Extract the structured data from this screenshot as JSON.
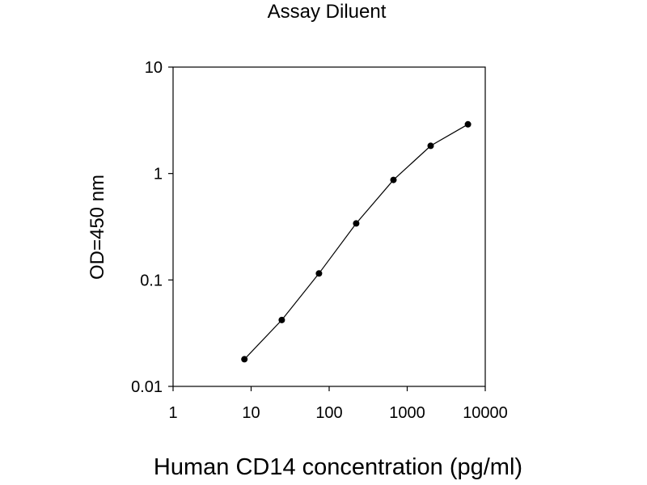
{
  "chart_data": {
    "type": "line",
    "title": "Assay Diluent",
    "xlabel": "Human CD14 concentration (pg/ml)",
    "ylabel": "OD=450 nm",
    "x_scale": "log",
    "y_scale": "log",
    "xlim": [
      1,
      10000
    ],
    "ylim": [
      0.01,
      10
    ],
    "x_ticks": [
      "1",
      "10",
      "100",
      "1000",
      "10000"
    ],
    "y_ticks": [
      "0.01",
      "0.1",
      "1",
      "10"
    ],
    "grid": false,
    "legend": "none",
    "series": [
      {
        "x": [
          8.2,
          24.7,
          74,
          222,
          667,
          2000,
          6000
        ],
        "y": [
          0.018,
          0.042,
          0.115,
          0.34,
          0.87,
          1.82,
          2.9
        ],
        "color": "#000000",
        "marker": "circle"
      }
    ]
  }
}
